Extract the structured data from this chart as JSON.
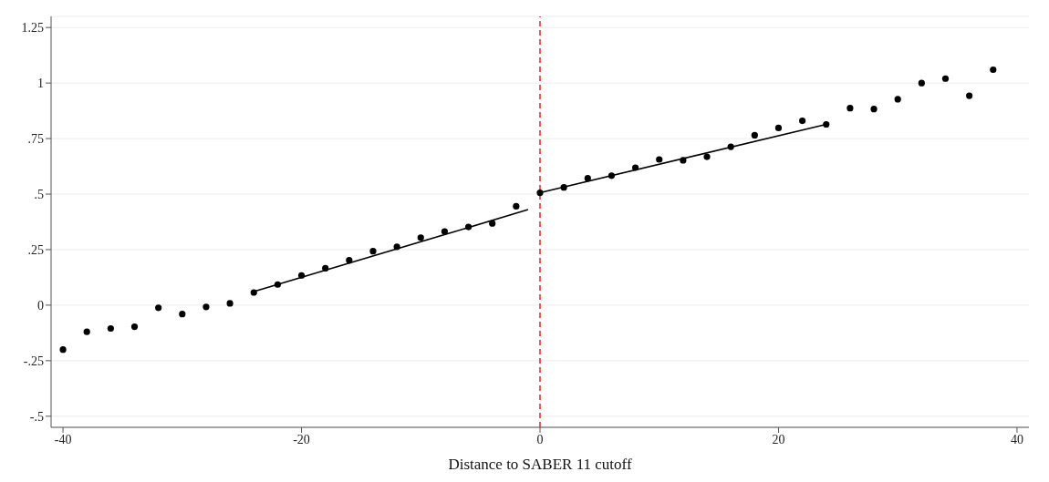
{
  "chart_data": {
    "type": "scatter",
    "xlabel": "Distance to SABER 11 cutoff",
    "xlim": [
      -41,
      41
    ],
    "xticks": [
      -40,
      -20,
      0,
      20,
      40
    ],
    "ylim": [
      -0.55,
      1.3
    ],
    "yticks": [
      {
        "value": -0.5,
        "label": "-.5"
      },
      {
        "value": -0.25,
        "label": "-.25"
      },
      0,
      {
        "value": 0.25,
        "label": ".25"
      },
      {
        "value": 0.5,
        "label": ".5"
      },
      {
        "value": 0.75,
        "label": ".75"
      },
      1,
      1.25
    ],
    "grid": "y",
    "series": [
      {
        "marker": "circle",
        "color": "#000000",
        "x": [
          -40,
          -38,
          -36,
          -34,
          -32,
          -30,
          -28,
          -26,
          -24,
          -22,
          -20,
          -18,
          -16,
          -14,
          -12,
          -10,
          -8,
          -6,
          -4,
          -2,
          0,
          2,
          4,
          6,
          8,
          10,
          12,
          14,
          16,
          18,
          20,
          22,
          24,
          26,
          28,
          30,
          32,
          34,
          36,
          38
        ],
        "values": [
          -0.2,
          -0.12,
          -0.105,
          -0.097,
          -0.012,
          -0.04,
          -0.008,
          0.008,
          0.057,
          0.093,
          0.134,
          0.166,
          0.202,
          0.243,
          0.263,
          0.304,
          0.332,
          0.352,
          0.368,
          0.445,
          0.506,
          0.53,
          0.571,
          0.583,
          0.619,
          0.656,
          0.652,
          0.668,
          0.713,
          0.765,
          0.798,
          0.83,
          0.814,
          0.887,
          0.883,
          0.927,
          1.0,
          1.02,
          0.943,
          1.06
        ]
      },
      {
        "type": "line",
        "marker": "none",
        "color": "#000000",
        "line_style": "solid",
        "x": [
          -24,
          -1
        ],
        "values": [
          0.061,
          0.43
        ]
      },
      {
        "type": "line",
        "marker": "none",
        "color": "#000000",
        "line_style": "solid",
        "x": [
          0,
          24
        ],
        "values": [
          0.506,
          0.814
        ]
      }
    ],
    "ref_lines": [
      {
        "axis": "x",
        "value": 0,
        "color": "#e8312f",
        "line_style": "dashed"
      }
    ]
  }
}
